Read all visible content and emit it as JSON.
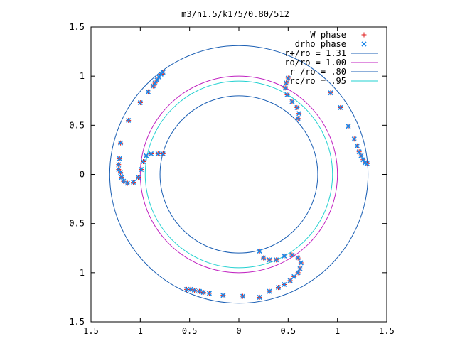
{
  "chart_data": {
    "type": "scatter",
    "title": "m3/n1.5/k175/0.80/512",
    "xlabel": "",
    "ylabel": "",
    "xlim": [
      -1.5,
      1.5
    ],
    "ylim": [
      -1.5,
      1.5
    ],
    "grid": false,
    "legend_position": "top-right",
    "x_tick_labels": [
      "1.5",
      "1",
      "0.5",
      "0",
      "0.5",
      "1",
      "1.5"
    ],
    "y_tick_labels": [
      "1.5",
      "1",
      "0.5",
      "0",
      "0.5",
      "1",
      "1.5"
    ],
    "tick_values": [
      -1.5,
      -1,
      -0.5,
      0,
      0.5,
      1,
      1.5
    ],
    "circles": [
      {
        "name": "r+/ro = 1.31",
        "r": 1.31,
        "color": "#1b5fb4"
      },
      {
        "name": "ro/ro = 1.00",
        "r": 1.0,
        "color": "#c020c0"
      },
      {
        "name": "r-/ro = .80",
        "r": 0.8,
        "color": "#1b5fb4"
      },
      {
        "name": "rc/ro = .95",
        "r": 0.95,
        "color": "#20d0d0"
      }
    ],
    "series": [
      {
        "name": "W phase",
        "marker": "+",
        "color": "#e02020",
        "points": [
          [
            -1.22,
            0.05
          ],
          [
            -1.22,
            0.1
          ],
          [
            -1.21,
            0.16
          ],
          [
            -1.2,
            0.32
          ],
          [
            -1.12,
            0.55
          ],
          [
            -1.0,
            0.73
          ],
          [
            -0.92,
            0.84
          ],
          [
            -0.87,
            0.9
          ],
          [
            -0.85,
            0.93
          ],
          [
            -0.83,
            0.96
          ],
          [
            -0.81,
            0.99
          ],
          [
            -0.79,
            1.02
          ],
          [
            -0.77,
            1.04
          ],
          [
            -1.2,
            0.02
          ],
          [
            -1.19,
            -0.03
          ],
          [
            -1.17,
            -0.07
          ],
          [
            -1.13,
            -0.09
          ],
          [
            -1.07,
            -0.08
          ],
          [
            -1.02,
            -0.03
          ],
          [
            -0.99,
            0.05
          ],
          [
            -0.97,
            0.13
          ],
          [
            -0.94,
            0.19
          ],
          [
            -0.89,
            0.21
          ],
          [
            -0.82,
            0.21
          ],
          [
            -0.77,
            0.21
          ],
          [
            0.93,
            0.83
          ],
          [
            1.03,
            0.68
          ],
          [
            1.11,
            0.49
          ],
          [
            1.17,
            0.36
          ],
          [
            1.2,
            0.29
          ],
          [
            1.22,
            0.23
          ],
          [
            1.24,
            0.19
          ],
          [
            1.26,
            0.15
          ],
          [
            1.28,
            0.12
          ],
          [
            1.3,
            0.11
          ],
          [
            0.5,
            0.98
          ],
          [
            0.48,
            0.93
          ],
          [
            0.47,
            0.88
          ],
          [
            0.49,
            0.81
          ],
          [
            0.54,
            0.74
          ],
          [
            0.59,
            0.68
          ],
          [
            0.61,
            0.62
          ],
          [
            0.6,
            0.57
          ],
          [
            0.21,
            -1.25
          ],
          [
            0.31,
            -1.19
          ],
          [
            0.4,
            -1.15
          ],
          [
            0.46,
            -1.12
          ],
          [
            0.52,
            -1.08
          ],
          [
            0.56,
            -1.04
          ],
          [
            0.6,
            -1.0
          ],
          [
            0.62,
            -0.96
          ],
          [
            0.63,
            -0.9
          ],
          [
            0.6,
            -0.85
          ],
          [
            0.54,
            -0.82
          ],
          [
            0.46,
            -0.83
          ],
          [
            0.38,
            -0.87
          ],
          [
            0.31,
            -0.87
          ],
          [
            0.25,
            -0.85
          ],
          [
            0.21,
            -0.78
          ],
          [
            0.04,
            -1.24
          ],
          [
            -0.16,
            -1.23
          ],
          [
            -0.3,
            -1.21
          ],
          [
            -0.36,
            -1.2
          ],
          [
            -0.4,
            -1.19
          ],
          [
            -0.45,
            -1.18
          ],
          [
            -0.49,
            -1.17
          ],
          [
            -0.53,
            -1.17
          ]
        ]
      },
      {
        "name": "drho phase",
        "marker": "x",
        "color": "#1e88e8",
        "points": [
          [
            -1.22,
            0.05
          ],
          [
            -1.22,
            0.1
          ],
          [
            -1.21,
            0.16
          ],
          [
            -1.2,
            0.32
          ],
          [
            -1.12,
            0.55
          ],
          [
            -1.0,
            0.73
          ],
          [
            -0.92,
            0.84
          ],
          [
            -0.87,
            0.9
          ],
          [
            -0.85,
            0.93
          ],
          [
            -0.83,
            0.96
          ],
          [
            -0.81,
            0.99
          ],
          [
            -0.79,
            1.02
          ],
          [
            -0.77,
            1.04
          ],
          [
            -1.2,
            0.02
          ],
          [
            -1.19,
            -0.03
          ],
          [
            -1.17,
            -0.07
          ],
          [
            -1.13,
            -0.09
          ],
          [
            -1.07,
            -0.08
          ],
          [
            -1.02,
            -0.03
          ],
          [
            -0.99,
            0.05
          ],
          [
            -0.97,
            0.13
          ],
          [
            -0.94,
            0.19
          ],
          [
            -0.89,
            0.21
          ],
          [
            -0.82,
            0.21
          ],
          [
            -0.77,
            0.21
          ],
          [
            0.93,
            0.83
          ],
          [
            1.03,
            0.68
          ],
          [
            1.11,
            0.49
          ],
          [
            1.17,
            0.36
          ],
          [
            1.2,
            0.29
          ],
          [
            1.22,
            0.23
          ],
          [
            1.24,
            0.19
          ],
          [
            1.26,
            0.15
          ],
          [
            1.28,
            0.12
          ],
          [
            1.3,
            0.11
          ],
          [
            0.5,
            0.98
          ],
          [
            0.48,
            0.93
          ],
          [
            0.47,
            0.88
          ],
          [
            0.49,
            0.81
          ],
          [
            0.54,
            0.74
          ],
          [
            0.59,
            0.68
          ],
          [
            0.61,
            0.62
          ],
          [
            0.6,
            0.57
          ],
          [
            0.21,
            -1.25
          ],
          [
            0.31,
            -1.19
          ],
          [
            0.4,
            -1.15
          ],
          [
            0.46,
            -1.12
          ],
          [
            0.52,
            -1.08
          ],
          [
            0.56,
            -1.04
          ],
          [
            0.6,
            -1.0
          ],
          [
            0.62,
            -0.96
          ],
          [
            0.63,
            -0.9
          ],
          [
            0.6,
            -0.85
          ],
          [
            0.54,
            -0.82
          ],
          [
            0.46,
            -0.83
          ],
          [
            0.38,
            -0.87
          ],
          [
            0.31,
            -0.87
          ],
          [
            0.25,
            -0.85
          ],
          [
            0.21,
            -0.78
          ],
          [
            0.04,
            -1.24
          ],
          [
            -0.16,
            -1.23
          ],
          [
            -0.3,
            -1.21
          ],
          [
            -0.36,
            -1.2
          ],
          [
            -0.4,
            -1.19
          ],
          [
            -0.45,
            -1.18
          ],
          [
            -0.49,
            -1.17
          ],
          [
            -0.53,
            -1.17
          ]
        ]
      }
    ]
  }
}
